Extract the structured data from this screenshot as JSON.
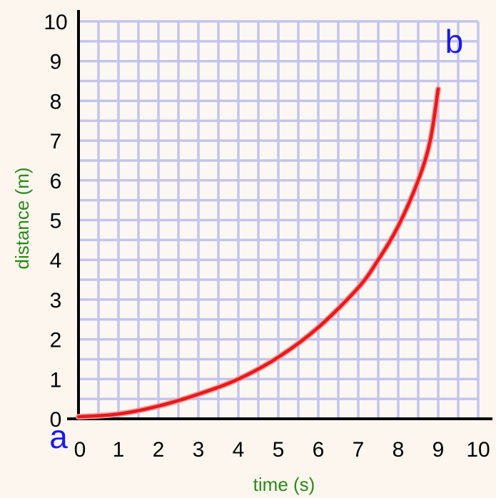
{
  "colors": {
    "background": "#fdf6ee",
    "grid": "#c4c4ec",
    "axis": "#000000",
    "curve": "#e8181c",
    "axis_title": "#2a8a1a",
    "point_label": "#1a1aee"
  },
  "chart_data": {
    "type": "line",
    "title": "",
    "xlabel": "time (s)",
    "ylabel": "distance (m)",
    "xlim": [
      0,
      10
    ],
    "ylim": [
      0,
      10
    ],
    "grid": true,
    "grid_minor_step": 0.5,
    "x_ticks": [
      "0",
      "1",
      "2",
      "3",
      "4",
      "5",
      "6",
      "7",
      "8",
      "9",
      "10"
    ],
    "y_ticks": [
      "0",
      "1",
      "2",
      "3",
      "4",
      "5",
      "6",
      "7",
      "8",
      "9",
      "10"
    ],
    "series": [
      {
        "color": "#e8181c",
        "x": [
          0,
          1,
          2,
          3,
          4,
          5,
          6,
          7,
          7.5,
          8,
          8.5,
          8.8,
          9.0
        ],
        "y": [
          0.05,
          0.12,
          0.32,
          0.62,
          1.0,
          1.55,
          2.3,
          3.3,
          4.0,
          4.85,
          6.0,
          7.0,
          8.3
        ]
      }
    ],
    "annotations": [
      {
        "text": "a",
        "x": -0.5,
        "y": -0.45
      },
      {
        "text": "b",
        "x": 9.4,
        "y": 9.5
      }
    ]
  }
}
